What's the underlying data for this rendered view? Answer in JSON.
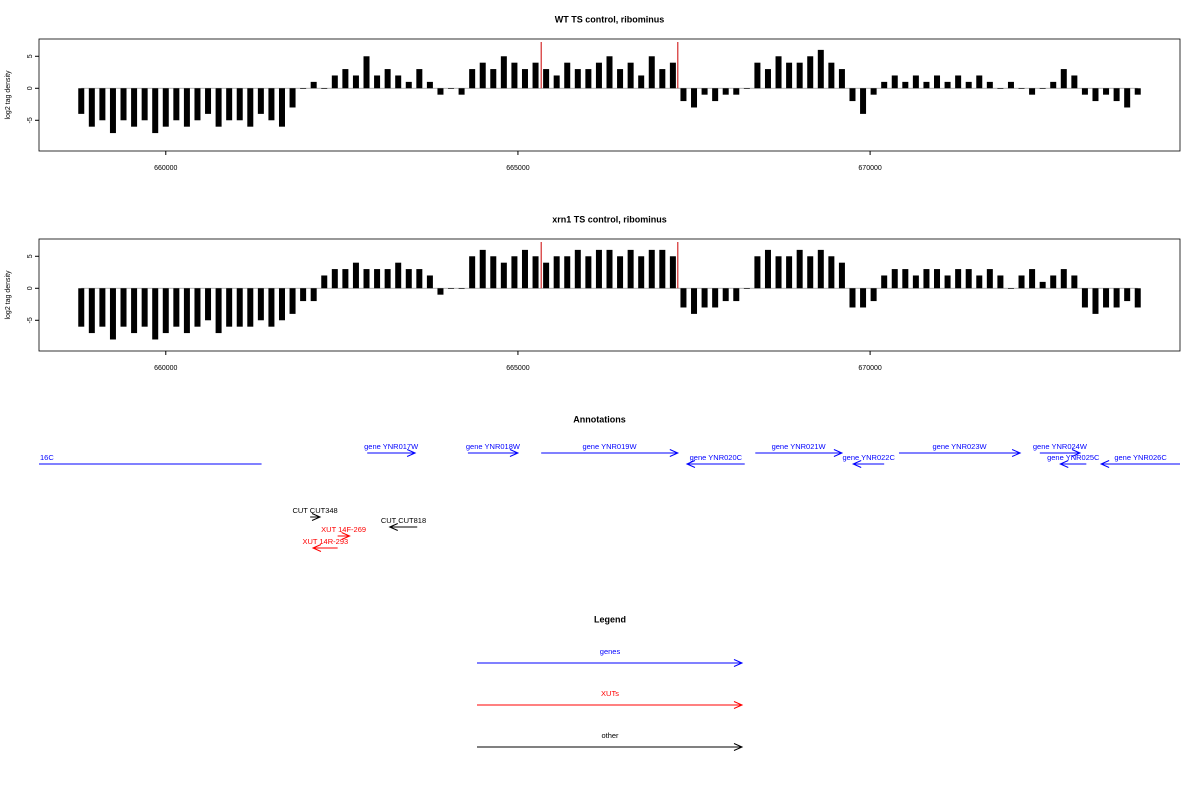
{
  "chart_data": [
    {
      "type": "bar",
      "title": "WT TS control, ribominus",
      "ylabel": "log2 tag density",
      "x": [
        658800,
        658950,
        659100,
        659250,
        659400,
        659550,
        659700,
        659850,
        660000,
        660150,
        660300,
        660450,
        660600,
        660750,
        660900,
        661050,
        661200,
        661350,
        661500,
        661650,
        661800,
        661950,
        662100,
        662250,
        662400,
        662550,
        662700,
        662850,
        663000,
        663150,
        663300,
        663450,
        663600,
        663750,
        663900,
        664050,
        664200,
        664350,
        664500,
        664650,
        664800,
        664950,
        665100,
        665250,
        665400,
        665550,
        665700,
        665850,
        666000,
        666150,
        666300,
        666450,
        666600,
        666750,
        666900,
        667050,
        667200,
        667350,
        667500,
        667650,
        667800,
        667950,
        668100,
        668250,
        668400,
        668550,
        668700,
        668850,
        669000,
        669150,
        669300,
        669450,
        669600,
        669750,
        669900,
        670050,
        670200,
        670350,
        670500,
        670650,
        670800,
        670950,
        671100,
        671250,
        671400,
        671550,
        671700,
        671850,
        672000,
        672150,
        672300,
        672450,
        672600,
        672750,
        672900,
        673050,
        673200,
        673350,
        673500,
        673650,
        673800
      ],
      "values": [
        -4,
        -6,
        -5,
        -7,
        -5,
        -6,
        -5,
        -7,
        -6,
        -5,
        -6,
        -5,
        -4,
        -6,
        -5,
        -5,
        -6,
        -4,
        -5,
        -6,
        -3,
        0,
        1,
        0,
        2,
        3,
        2,
        5,
        2,
        3,
        2,
        1,
        3,
        1,
        -1,
        0,
        -1,
        3,
        4,
        3,
        5,
        4,
        3,
        4,
        3,
        2,
        4,
        3,
        3,
        4,
        5,
        3,
        4,
        2,
        5,
        3,
        4,
        -2,
        -3,
        -1,
        -2,
        -1,
        -1,
        0,
        4,
        3,
        5,
        4,
        4,
        5,
        6,
        4,
        3,
        -2,
        -4,
        -1,
        1,
        2,
        1,
        2,
        1,
        2,
        1,
        2,
        1,
        2,
        1,
        0,
        1,
        0,
        -1,
        0,
        1,
        3,
        2,
        -1,
        -2,
        -1,
        -2,
        -3,
        -1
      ],
      "color": "#000000",
      "markers": [
        665330,
        667270
      ],
      "marker_color": "#cc0000",
      "xlim": [
        658200,
        674400
      ],
      "xticks": [
        660000,
        665000,
        670000
      ],
      "ylim": [
        -9.8,
        7.7
      ],
      "yticks": [
        -5,
        0,
        5
      ]
    },
    {
      "type": "bar",
      "title": "xrn1 TS control, ribominus",
      "ylabel": "log2 tag density",
      "x": [
        658800,
        658950,
        659100,
        659250,
        659400,
        659550,
        659700,
        659850,
        660000,
        660150,
        660300,
        660450,
        660600,
        660750,
        660900,
        661050,
        661200,
        661350,
        661500,
        661650,
        661800,
        661950,
        662100,
        662250,
        662400,
        662550,
        662700,
        662850,
        663000,
        663150,
        663300,
        663450,
        663600,
        663750,
        663900,
        664050,
        664200,
        664350,
        664500,
        664650,
        664800,
        664950,
        665100,
        665250,
        665400,
        665550,
        665700,
        665850,
        666000,
        666150,
        666300,
        666450,
        666600,
        666750,
        666900,
        667050,
        667200,
        667350,
        667500,
        667650,
        667800,
        667950,
        668100,
        668250,
        668400,
        668550,
        668700,
        668850,
        669000,
        669150,
        669300,
        669450,
        669600,
        669750,
        669900,
        670050,
        670200,
        670350,
        670500,
        670650,
        670800,
        670950,
        671100,
        671250,
        671400,
        671550,
        671700,
        671850,
        672000,
        672150,
        672300,
        672450,
        672600,
        672750,
        672900,
        673050,
        673200,
        673350,
        673500,
        673650,
        673800
      ],
      "values": [
        -6,
        -7,
        -6,
        -8,
        -6,
        -7,
        -6,
        -8,
        -7,
        -6,
        -7,
        -6,
        -5,
        -7,
        -6,
        -6,
        -6,
        -5,
        -6,
        -5,
        -4,
        -2,
        -2,
        2,
        3,
        3,
        4,
        3,
        3,
        3,
        4,
        3,
        3,
        2,
        -1,
        0,
        0,
        5,
        6,
        5,
        4,
        5,
        6,
        5,
        4,
        5,
        5,
        6,
        5,
        6,
        6,
        5,
        6,
        5,
        6,
        6,
        5,
        -3,
        -4,
        -3,
        -3,
        -2,
        -2,
        0,
        5,
        6,
        5,
        5,
        6,
        5,
        6,
        5,
        4,
        -3,
        -3,
        -2,
        2,
        3,
        3,
        2,
        3,
        3,
        2,
        3,
        3,
        2,
        3,
        2,
        0,
        2,
        3,
        1,
        2,
        3,
        2,
        -3,
        -4,
        -3,
        -3,
        -2,
        -3
      ],
      "color": "#000000",
      "markers": [
        665330,
        667270
      ],
      "marker_color": "#cc0000",
      "xlim": [
        658200,
        674400
      ],
      "xticks": [
        660000,
        665000,
        670000
      ],
      "ylim": [
        -9.8,
        7.7
      ],
      "yticks": [
        -5,
        0,
        5
      ]
    }
  ],
  "annotations": {
    "title": "Annotations",
    "features": [
      {
        "label": "16C",
        "start": 658000,
        "end": 661360,
        "strand": "-",
        "color": "#0000ff"
      },
      {
        "label": "gene YNR017W",
        "start": 662860,
        "end": 663540,
        "strand": "+",
        "color": "#0000ff"
      },
      {
        "label": "gene YNR018W",
        "start": 664290,
        "end": 665000,
        "strand": "+",
        "color": "#0000ff"
      },
      {
        "label": "gene YNR019W",
        "start": 665330,
        "end": 667270,
        "strand": "+",
        "color": "#0000ff"
      },
      {
        "label": "gene YNR020C",
        "start": 667400,
        "end": 668220,
        "strand": "-",
        "color": "#0000ff"
      },
      {
        "label": "gene YNR021W",
        "start": 668370,
        "end": 669600,
        "strand": "+",
        "color": "#0000ff"
      },
      {
        "label": "gene YNR022C",
        "start": 669760,
        "end": 670200,
        "strand": "-",
        "color": "#0000ff"
      },
      {
        "label": "gene YNR023W",
        "start": 670410,
        "end": 672130,
        "strand": "+",
        "color": "#0000ff"
      },
      {
        "label": "gene YNR024W",
        "start": 672410,
        "end": 672980,
        "strand": "+",
        "color": "#0000ff"
      },
      {
        "label": "gene YNR025C",
        "start": 672700,
        "end": 673070,
        "strand": "-",
        "color": "#0000ff"
      },
      {
        "label": "gene YNR026C",
        "start": 673280,
        "end": 674800,
        "strand": "-",
        "color": "#0000ff"
      },
      {
        "label": "CUT CUT348",
        "start": 662050,
        "end": 662190,
        "strand": "+",
        "color": "#000000"
      },
      {
        "label": "CUT CUT818",
        "start": 663180,
        "end": 663570,
        "strand": "-",
        "color": "#000000"
      },
      {
        "label": "XUT 14F-269",
        "start": 662440,
        "end": 662610,
        "strand": "+",
        "color": "#ff0000"
      },
      {
        "label": "XUT 14R-293",
        "start": 662090,
        "end": 662440,
        "strand": "-",
        "color": "#ff0000"
      }
    ]
  },
  "legend": {
    "title": "Legend",
    "entries": [
      {
        "label": "genes",
        "color": "#0000ff"
      },
      {
        "label": "XUTs",
        "color": "#ff0000"
      },
      {
        "label": "other",
        "color": "#000000"
      }
    ]
  }
}
